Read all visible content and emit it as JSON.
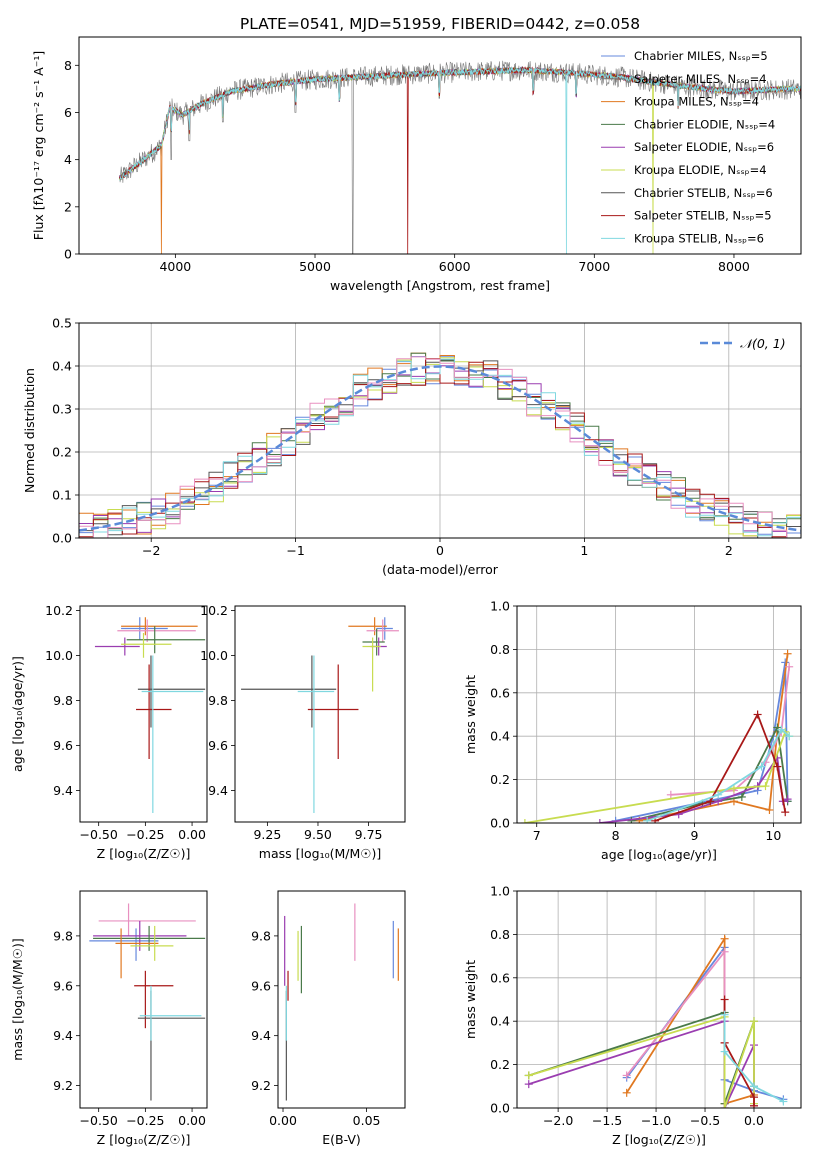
{
  "title": "PLATE=0541, MJD=51959, FIBERID=0442, z=0.058",
  "colors": [
    "#6688dd",
    "#777777",
    "#e07820",
    "#4a7a4a",
    "#9a3db0",
    "#c8dc50",
    "#555555",
    "#a81818",
    "#80d8e0",
    "#e890c0"
  ],
  "chart_data": [
    {
      "id": "spectrum",
      "type": "line",
      "xlabel": "wavelength [Angstrom, rest frame]",
      "ylabel": "Flux [fλ10⁻¹⁷ erg cm⁻² s⁻¹ A⁻¹]",
      "xlim": [
        3310,
        8480
      ],
      "ylim": [
        0,
        9.2
      ],
      "xticks": [
        4000,
        5000,
        6000,
        7000,
        8000
      ],
      "yticks": [
        0,
        2,
        4,
        6,
        8
      ],
      "grid": false,
      "legend_position": "right",
      "series": [
        {
          "name": "Chabrier MILES, Nₛₛₚ=5",
          "color": "#6688dd"
        },
        {
          "name": "Salpeter MILES, Nₛₛₚ=4",
          "color": "#777777"
        },
        {
          "name": "Kroupa MILES, Nₛₛₚ=4",
          "color": "#e07820"
        },
        {
          "name": "Chabrier ELODIE, Nₛₛₚ=4",
          "color": "#4a7a4a"
        },
        {
          "name": "Salpeter ELODIE, Nₛₛₚ=6",
          "color": "#9a3db0"
        },
        {
          "name": "Kroupa ELODIE, Nₛₛₚ=4",
          "color": "#c8dc50"
        },
        {
          "name": "Chabrier STELIB, Nₛₛₚ=6",
          "color": "#555555"
        },
        {
          "name": "Salpeter STELIB, Nₛₛₚ=5",
          "color": "#a81818"
        },
        {
          "name": "Kroupa STELIB, Nₛₛₚ=6",
          "color": "#80d8e0"
        }
      ],
      "continuum": [
        [
          3600,
          3.2
        ],
        [
          3750,
          3.9
        ],
        [
          3900,
          4.6
        ],
        [
          3960,
          6.2
        ],
        [
          4050,
          5.9
        ],
        [
          4200,
          6.4
        ],
        [
          4400,
          6.9
        ],
        [
          4700,
          7.2
        ],
        [
          5000,
          7.4
        ],
        [
          5300,
          7.5
        ],
        [
          5600,
          7.6
        ],
        [
          6000,
          7.7
        ],
        [
          6500,
          7.8
        ],
        [
          6800,
          7.7
        ],
        [
          7000,
          7.6
        ],
        [
          7200,
          7.5
        ],
        [
          7400,
          7.3
        ],
        [
          7800,
          7.0
        ],
        [
          8000,
          6.9
        ],
        [
          8400,
          7.0
        ]
      ],
      "observed_features": [
        [
          3970,
          4.0
        ],
        [
          4100,
          4.8
        ],
        [
          4340,
          5.6
        ],
        [
          4861,
          6.0
        ],
        [
          5175,
          6.6
        ],
        [
          5270,
          0.0
        ],
        [
          5890,
          6.6
        ],
        [
          6563,
          6.9
        ],
        [
          6870,
          6.9
        ],
        [
          7600,
          6.5
        ]
      ],
      "model_dropouts": [
        [
          3900,
          0.0
        ],
        [
          5665,
          0.0
        ],
        [
          6800,
          0.0
        ],
        [
          7420,
          0.0
        ]
      ]
    },
    {
      "id": "residuals",
      "type": "histogram",
      "xlabel": "(data-model)/error",
      "ylabel": "Normed distribution",
      "xlim": [
        -2.5,
        2.5
      ],
      "ylim": [
        0,
        0.5
      ],
      "xticks": [
        -2,
        -1,
        0,
        1,
        2
      ],
      "yticks": [
        0.0,
        0.1,
        0.2,
        0.3,
        0.4,
        0.5
      ],
      "grid": true,
      "legend_position": "upper right",
      "legend": "𝒩(0, 1)",
      "curve": {
        "type": "gaussian",
        "mean": 0,
        "sigma": 1,
        "color": "#5a8ad8"
      }
    },
    {
      "id": "age-vs-Z",
      "type": "errorbar",
      "xlabel": "Z [log₁₀(Z/Z☉)]",
      "ylabel": "age  [log₁₀(age/yr)]",
      "xlim": [
        -0.6,
        0.08
      ],
      "ylim": [
        9.26,
        10.22
      ],
      "xticks": [
        -0.5,
        -0.25,
        0.0
      ],
      "yticks": [
        9.4,
        9.6,
        9.8,
        10.0,
        10.2
      ],
      "grid": false,
      "points": [
        {
          "color": "#6688dd",
          "x": -0.28,
          "xerr": [
            0.1,
            0.15
          ],
          "y": 10.12,
          "yerr": [
            0.05,
            0.05
          ]
        },
        {
          "color": "#e07820",
          "x": -0.25,
          "xerr": [
            0.13,
            0.28
          ],
          "y": 10.13,
          "yerr": [
            0.04,
            0.04
          ]
        },
        {
          "color": "#e890c0",
          "x": -0.24,
          "xerr": [
            0.16,
            0.26
          ],
          "y": 10.11,
          "yerr": [
            0.05,
            0.05
          ]
        },
        {
          "color": "#4a7a4a",
          "x": -0.2,
          "xerr": [
            0.15,
            0.27
          ],
          "y": 10.07,
          "yerr": [
            0.06,
            0.06
          ]
        },
        {
          "color": "#9a3db0",
          "x": -0.36,
          "xerr": [
            0.16,
            0.08
          ],
          "y": 10.04,
          "yerr": [
            0.04,
            0.04
          ]
        },
        {
          "color": "#c8dc50",
          "x": -0.26,
          "xerr": [
            0.12,
            0.15
          ],
          "y": 10.05,
          "yerr": [
            0.06,
            0.05
          ]
        },
        {
          "color": "#555555",
          "x": -0.22,
          "xerr": [
            0.07,
            0.29
          ],
          "y": 9.85,
          "yerr": [
            0.17,
            0.15
          ]
        },
        {
          "color": "#a81818",
          "x": -0.23,
          "xerr": [
            0.07,
            0.12
          ],
          "y": 9.76,
          "yerr": [
            0.22,
            0.2
          ]
        },
        {
          "color": "#80d8e0",
          "x": -0.21,
          "xerr": [
            0.06,
            0.27
          ],
          "y": 9.84,
          "yerr": [
            0.54,
            0.16
          ]
        }
      ]
    },
    {
      "id": "age-vs-mass",
      "type": "errorbar",
      "xlabel": "mass [log₁₀(M/M☉)]",
      "ylabel": "",
      "xlim": [
        9.09,
        9.93
      ],
      "ylim": [
        9.26,
        10.22
      ],
      "xticks": [
        9.25,
        9.5,
        9.75
      ],
      "yticks": [
        9.4,
        9.6,
        9.8,
        10.0,
        10.2
      ],
      "grid": false,
      "points": [
        {
          "color": "#6688dd",
          "x": 9.83,
          "xerr": [
            0.04,
            0.04
          ],
          "y": 10.12,
          "yerr": [
            0.05,
            0.05
          ]
        },
        {
          "color": "#e07820",
          "x": 9.78,
          "xerr": [
            0.13,
            0.06
          ],
          "y": 10.13,
          "yerr": [
            0.04,
            0.04
          ]
        },
        {
          "color": "#e890c0",
          "x": 9.82,
          "xerr": [
            0.08,
            0.08
          ],
          "y": 10.11,
          "yerr": [
            0.05,
            0.05
          ]
        },
        {
          "color": "#4a7a4a",
          "x": 9.79,
          "xerr": [
            0.07,
            0.04
          ],
          "y": 10.06,
          "yerr": [
            0.06,
            0.06
          ]
        },
        {
          "color": "#9a3db0",
          "x": 9.8,
          "xerr": [
            0.04,
            0.04
          ],
          "y": 10.04,
          "yerr": [
            0.04,
            0.04
          ]
        },
        {
          "color": "#c8dc50",
          "x": 9.77,
          "xerr": [
            0.05,
            0.04
          ],
          "y": 10.04,
          "yerr": [
            0.2,
            0.04
          ]
        },
        {
          "color": "#555555",
          "x": 9.47,
          "xerr": [
            0.35,
            0.12
          ],
          "y": 9.85,
          "yerr": [
            0.17,
            0.15
          ]
        },
        {
          "color": "#a81818",
          "x": 9.6,
          "xerr": [
            0.15,
            0.1
          ],
          "y": 9.76,
          "yerr": [
            0.22,
            0.2
          ]
        },
        {
          "color": "#80d8e0",
          "x": 9.48,
          "xerr": [
            0.08,
            0.1
          ],
          "y": 9.84,
          "yerr": [
            0.54,
            0.16
          ]
        }
      ]
    },
    {
      "id": "weight-vs-age",
      "type": "line",
      "xlabel": "age  [log₁₀(age/yr)]",
      "ylabel": "mass weight",
      "xlim": [
        6.75,
        10.35
      ],
      "ylim": [
        0,
        1.0
      ],
      "xticks": [
        7,
        8,
        9,
        10
      ],
      "yticks": [
        0.0,
        0.2,
        0.4,
        0.6,
        0.8,
        1.0
      ],
      "grid": true,
      "series": [
        {
          "color": "#6688dd",
          "x": [
            8.0,
            9.8,
            10.0,
            10.15,
            10.18
          ],
          "y": [
            0.01,
            0.15,
            0.4,
            0.74,
            0.1
          ]
        },
        {
          "color": "#e07820",
          "x": [
            8.3,
            9.5,
            9.95,
            10.05,
            10.18
          ],
          "y": [
            0.01,
            0.1,
            0.06,
            0.42,
            0.78
          ]
        },
        {
          "color": "#e890c0",
          "x": [
            8.7,
            9.5,
            9.9,
            10.1,
            10.2
          ],
          "y": [
            0.13,
            0.15,
            0.28,
            0.42,
            0.72
          ]
        },
        {
          "color": "#4a7a4a",
          "x": [
            8.2,
            9.1,
            9.6,
            10.05,
            10.18
          ],
          "y": [
            0.01,
            0.09,
            0.12,
            0.44,
            0.1
          ]
        },
        {
          "color": "#9a3db0",
          "x": [
            7.8,
            8.8,
            9.3,
            9.8,
            10.05,
            10.12,
            10.18
          ],
          "y": [
            0.0,
            0.04,
            0.1,
            0.17,
            0.3,
            0.1,
            0.11
          ]
        },
        {
          "color": "#c8dc50",
          "x": [
            6.85,
            9.5,
            9.9,
            10.15,
            10.2
          ],
          "y": [
            0.0,
            0.16,
            0.17,
            0.42,
            0.4
          ]
        },
        {
          "color": "#a81818",
          "x": [
            8.5,
            9.2,
            9.8,
            10.05,
            10.15
          ],
          "y": [
            0.01,
            0.1,
            0.5,
            0.26,
            0.05
          ]
        },
        {
          "color": "#80d8e0",
          "x": [
            8.4,
            9.3,
            9.85,
            10.1,
            10.2
          ],
          "y": [
            0.01,
            0.13,
            0.26,
            0.43,
            0.4
          ]
        }
      ]
    },
    {
      "id": "mass-vs-Z",
      "type": "errorbar",
      "xlabel": "Z [log₁₀(Z/Z☉)]",
      "ylabel": "mass [log₁₀(M/M☉)]",
      "xlim": [
        -0.6,
        0.08
      ],
      "ylim": [
        9.11,
        9.98
      ],
      "xticks": [
        -0.5,
        -0.25,
        0.0
      ],
      "yticks": [
        9.2,
        9.4,
        9.6,
        9.8
      ],
      "grid": false,
      "points": [
        {
          "color": "#e890c0",
          "x": -0.34,
          "xerr": [
            0.16,
            0.36
          ],
          "y": 9.86,
          "yerr": [
            0.06,
            0.07
          ]
        },
        {
          "color": "#6688dd",
          "x": -0.3,
          "xerr": [
            0.25,
            0.12
          ],
          "y": 9.78,
          "yerr": [
            0.08,
            0.05
          ]
        },
        {
          "color": "#9a3db0",
          "x": -0.28,
          "xerr": [
            0.25,
            0.25
          ],
          "y": 9.8,
          "yerr": [
            0.06,
            0.06
          ]
        },
        {
          "color": "#4a7a4a",
          "x": -0.23,
          "xerr": [
            0.3,
            0.3
          ],
          "y": 9.79,
          "yerr": [
            0.05,
            0.05
          ]
        },
        {
          "color": "#e07820",
          "x": -0.38,
          "xerr": [
            0.03,
            0.2
          ],
          "y": 9.77,
          "yerr": [
            0.14,
            0.06
          ]
        },
        {
          "color": "#c8dc50",
          "x": -0.2,
          "xerr": [
            0.13,
            0.1
          ],
          "y": 9.76,
          "yerr": [
            0.06,
            0.08
          ]
        },
        {
          "color": "#a81818",
          "x": -0.25,
          "xerr": [
            0.06,
            0.15
          ],
          "y": 9.6,
          "yerr": [
            0.17,
            0.06
          ]
        },
        {
          "color": "#555555",
          "x": -0.22,
          "xerr": [
            0.07,
            0.29
          ],
          "y": 9.47,
          "yerr": [
            0.33,
            0.11
          ]
        },
        {
          "color": "#80d8e0",
          "x": -0.22,
          "xerr": [
            0.06,
            0.27
          ],
          "y": 9.48,
          "yerr": [
            0.1,
            0.12
          ]
        }
      ]
    },
    {
      "id": "mass-vs-ebv",
      "type": "errorbar",
      "xlabel": "E(B-V)",
      "ylabel": "",
      "xlim": [
        -0.003,
        0.073
      ],
      "ylim": [
        9.11,
        9.98
      ],
      "xticks": [
        0.0,
        0.05
      ],
      "yticks": [
        9.2,
        9.4,
        9.6,
        9.8
      ],
      "grid": false,
      "points": [
        {
          "color": "#9a3db0",
          "x": 0.001,
          "y": 9.83,
          "yerr": [
            0.23,
            0.05
          ]
        },
        {
          "color": "#555555",
          "x": 0.002,
          "y": 9.47,
          "yerr": [
            0.33,
            0.11
          ]
        },
        {
          "color": "#80d8e0",
          "x": 0.002,
          "y": 9.48,
          "yerr": [
            0.1,
            0.12
          ]
        },
        {
          "color": "#a81818",
          "x": 0.003,
          "y": 9.6,
          "yerr": [
            0.06,
            0.06
          ]
        },
        {
          "color": "#c8dc50",
          "x": 0.009,
          "y": 9.76,
          "yerr": [
            0.14,
            0.06
          ]
        },
        {
          "color": "#4a7a4a",
          "x": 0.011,
          "y": 9.71,
          "yerr": [
            0.14,
            0.13
          ]
        },
        {
          "color": "#e890c0",
          "x": 0.043,
          "y": 9.81,
          "yerr": [
            0.11,
            0.12
          ]
        },
        {
          "color": "#6688dd",
          "x": 0.066,
          "y": 9.74,
          "yerr": [
            0.11,
            0.12
          ]
        },
        {
          "color": "#e07820",
          "x": 0.069,
          "y": 9.72,
          "yerr": [
            0.1,
            0.11
          ]
        }
      ]
    },
    {
      "id": "weight-vs-Z",
      "type": "line",
      "xlabel": "Z [log₁₀(Z/Z☉)]",
      "ylabel": "mass weight",
      "xlim": [
        -2.42,
        0.48
      ],
      "ylim": [
        0,
        1.0
      ],
      "xticks": [
        -2.0,
        -1.5,
        -1.0,
        -0.5,
        0.0
      ],
      "yticks": [
        0.0,
        0.2,
        0.4,
        0.6,
        0.8,
        1.0
      ],
      "grid": true,
      "series": [
        {
          "color": "#6688dd",
          "x": [
            -1.3,
            -0.3,
            -0.3,
            0.0,
            0.3
          ],
          "y": [
            0.14,
            0.74,
            0.13,
            0.08,
            0.04
          ]
        },
        {
          "color": "#e07820",
          "x": [
            -1.3,
            -0.3,
            -0.3,
            -0.3,
            0.0
          ],
          "y": [
            0.07,
            0.78,
            0.3,
            0.02,
            0.06
          ]
        },
        {
          "color": "#e890c0",
          "x": [
            -1.3,
            -0.3,
            -0.3
          ],
          "y": [
            0.15,
            0.72,
            0.3
          ]
        },
        {
          "color": "#4a7a4a",
          "x": [
            -2.3,
            -0.3,
            -0.3,
            0.0,
            0.0
          ],
          "y": [
            0.15,
            0.44,
            0.02,
            0.4,
            0.1
          ]
        },
        {
          "color": "#9a3db0",
          "x": [
            -2.3,
            -0.3,
            -0.3,
            0.0,
            0.0
          ],
          "y": [
            0.11,
            0.4,
            0.0,
            0.29,
            0.01
          ]
        },
        {
          "color": "#c8dc50",
          "x": [
            -2.3,
            -0.3,
            -0.3,
            0.0,
            0.0
          ],
          "y": [
            0.15,
            0.42,
            0.0,
            0.4,
            0.02
          ]
        },
        {
          "color": "#a81818",
          "x": [
            -0.3,
            -0.3,
            0.0,
            0.0
          ],
          "y": [
            0.5,
            0.3,
            0.05,
            0.01
          ]
        },
        {
          "color": "#80d8e0",
          "x": [
            -0.3,
            -0.3,
            0.0,
            0.3
          ],
          "y": [
            0.43,
            0.26,
            0.1,
            0.03
          ]
        }
      ]
    }
  ]
}
